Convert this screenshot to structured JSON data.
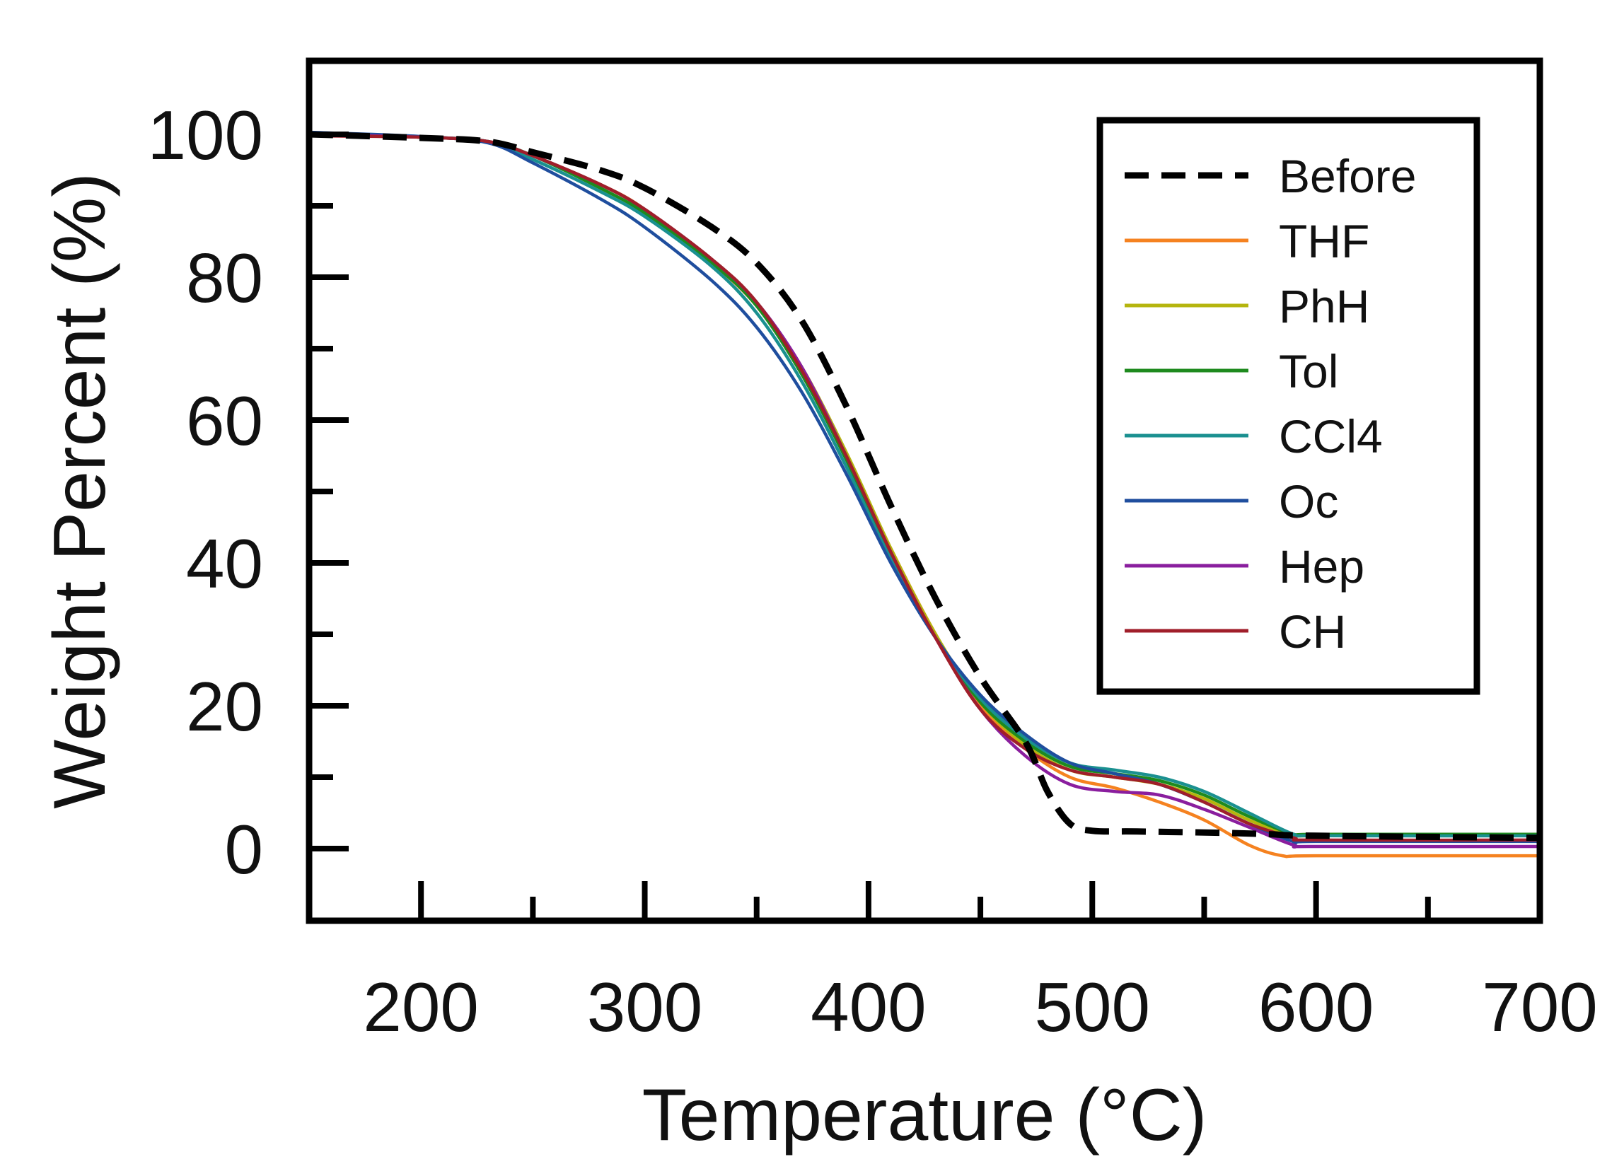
{
  "chart_data": {
    "type": "line",
    "title": "",
    "xlabel": "Temperature (°C)",
    "ylabel": "Weight Percent (%)",
    "xlim": [
      150,
      700
    ],
    "ylim": [
      -10,
      110
    ],
    "xticks": [
      200,
      300,
      400,
      500,
      600,
      700
    ],
    "xtick_labels": [
      "200",
      "300",
      "400",
      "500",
      "600",
      "700"
    ],
    "yticks": [
      0,
      20,
      40,
      60,
      80,
      100
    ],
    "ytick_labels": [
      "0",
      "20",
      "40",
      "60",
      "80",
      "100"
    ],
    "legend_position": "top-right",
    "grid": false,
    "series": [
      {
        "name": "Before",
        "color": "#000000",
        "dashed": true,
        "x": [
          150,
          200,
          230,
          250,
          280,
          300,
          330,
          350,
          370,
          390,
          410,
          430,
          450,
          470,
          480,
          490,
          500,
          520,
          560,
          580,
          600,
          700
        ],
        "y": [
          100,
          99.5,
          99,
          97.5,
          95,
          92.5,
          87,
          82,
          74,
          62,
          48,
          35,
          24,
          15,
          8,
          3.5,
          2.5,
          2.4,
          2.2,
          2,
          1.8,
          1.5
        ]
      },
      {
        "name": "THF",
        "color": "#F58220",
        "dashed": false,
        "x": [
          150,
          200,
          230,
          250,
          280,
          300,
          330,
          350,
          370,
          390,
          410,
          430,
          450,
          470,
          490,
          510,
          530,
          550,
          570,
          585,
          600,
          700
        ],
        "y": [
          100,
          99.6,
          99,
          97,
          93,
          89.5,
          82,
          76,
          67,
          55,
          42,
          30,
          20,
          14,
          10,
          8.5,
          6.5,
          4,
          0.5,
          -1,
          -1,
          -1
        ]
      },
      {
        "name": "PhH",
        "color": "#B5B50E",
        "dashed": false,
        "x": [
          150,
          200,
          230,
          250,
          280,
          300,
          330,
          350,
          370,
          390,
          410,
          430,
          450,
          470,
          490,
          510,
          530,
          550,
          570,
          590,
          600,
          700
        ],
        "y": [
          100,
          99.6,
          99,
          97,
          93,
          89.5,
          82.5,
          76.5,
          67.5,
          55.5,
          42,
          30,
          20.5,
          14.5,
          11,
          10,
          9,
          7,
          4,
          1.8,
          1.8,
          1.8
        ]
      },
      {
        "name": "Tol",
        "color": "#1E8A1E",
        "dashed": false,
        "x": [
          150,
          200,
          230,
          250,
          280,
          300,
          330,
          350,
          370,
          390,
          410,
          430,
          450,
          470,
          490,
          510,
          530,
          550,
          570,
          590,
          600,
          700
        ],
        "y": [
          100,
          99.6,
          99,
          97,
          92.5,
          89,
          82,
          76,
          66.5,
          54.5,
          41,
          29.5,
          20.5,
          15,
          11.5,
          10.5,
          9.5,
          7.5,
          4.5,
          2,
          2,
          2
        ]
      },
      {
        "name": "CCl4",
        "color": "#1A9090",
        "dashed": false,
        "x": [
          150,
          200,
          230,
          250,
          280,
          300,
          330,
          350,
          370,
          390,
          410,
          430,
          450,
          470,
          490,
          510,
          530,
          550,
          570,
          590,
          600,
          700
        ],
        "y": [
          100,
          99.6,
          99,
          96.5,
          92,
          88.5,
          81.5,
          75,
          65.5,
          53.5,
          40.5,
          29.5,
          21,
          15.5,
          12,
          11,
          10,
          8,
          5,
          2,
          1.8,
          1.8
        ]
      },
      {
        "name": "Oc",
        "color": "#1F4E9E",
        "dashed": false,
        "x": [
          150,
          200,
          230,
          250,
          280,
          300,
          330,
          350,
          370,
          390,
          410,
          430,
          450,
          470,
          490,
          510,
          530,
          550,
          570,
          590,
          600,
          700
        ],
        "y": [
          100.3,
          99.7,
          98.8,
          96,
          91,
          87,
          79.5,
          73,
          64,
          52.5,
          40,
          29.5,
          21.5,
          16,
          12,
          10.5,
          9,
          6.5,
          3.5,
          1,
          1,
          1
        ]
      },
      {
        "name": "Hep",
        "color": "#8A1E9E",
        "dashed": false,
        "x": [
          150,
          200,
          230,
          250,
          280,
          300,
          330,
          350,
          370,
          390,
          410,
          430,
          450,
          470,
          490,
          510,
          530,
          550,
          570,
          590,
          600,
          700
        ],
        "y": [
          100,
          99.6,
          99,
          97,
          93,
          89.5,
          82.5,
          76.5,
          67.5,
          55,
          41.5,
          29.5,
          19.5,
          13,
          9,
          8,
          7.5,
          5.5,
          3,
          0.5,
          0.3,
          0.3
        ]
      },
      {
        "name": "CH",
        "color": "#A01E2A",
        "dashed": false,
        "x": [
          150,
          200,
          230,
          250,
          280,
          300,
          330,
          350,
          370,
          390,
          410,
          430,
          450,
          470,
          490,
          510,
          530,
          550,
          570,
          590,
          600,
          700
        ],
        "y": [
          99.8,
          99.6,
          99,
          97,
          93,
          89.5,
          82.5,
          76.5,
          67,
          55,
          41.5,
          29.5,
          19.5,
          14,
          11,
          10,
          9,
          6.5,
          3.5,
          1.5,
          1.2,
          1.2
        ]
      }
    ]
  }
}
